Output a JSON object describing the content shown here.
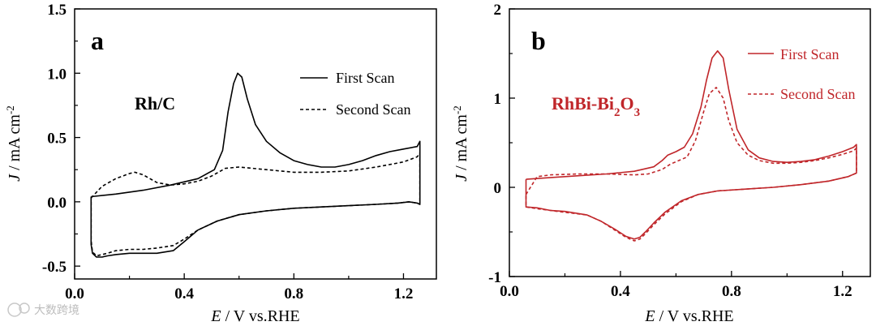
{
  "chart_data": [
    {
      "type": "line",
      "panel_label": "a",
      "annotation": "Rh/C",
      "xlabel": {
        "italic": "E",
        "rest": " / V vs.RHE"
      },
      "ylabel": {
        "italic": "J",
        "rest": " / mA cm",
        "sup": "-2"
      },
      "xlim": [
        0.0,
        1.32
      ],
      "ylim": [
        -0.6,
        1.5
      ],
      "xticks": [
        "0.0",
        "0.4",
        "0.8",
        "1.2"
      ],
      "xtick_values": [
        0.0,
        0.4,
        0.8,
        1.2
      ],
      "yticks": [
        "-0.5",
        "0.0",
        "0.5",
        "1.0",
        "1.5"
      ],
      "ytick_values": [
        -0.5,
        0.0,
        0.5,
        1.0,
        1.5
      ],
      "color": "#000000",
      "legend": {
        "placement": "top-right",
        "entries": [
          "First Scan",
          "Second Scan"
        ]
      },
      "series": [
        {
          "name": "First Scan",
          "style": "solid",
          "x": [
            0.06,
            0.15,
            0.25,
            0.35,
            0.45,
            0.51,
            0.54,
            0.56,
            0.58,
            0.595,
            0.61,
            0.63,
            0.66,
            0.7,
            0.75,
            0.8,
            0.85,
            0.9,
            0.95,
            1.0,
            1.05,
            1.1,
            1.15,
            1.2,
            1.25,
            1.26,
            1.26,
            1.25,
            1.22,
            1.18,
            1.1,
            1.0,
            0.9,
            0.8,
            0.7,
            0.6,
            0.52,
            0.45,
            0.4,
            0.36,
            0.3,
            0.25,
            0.2,
            0.15,
            0.12,
            0.1,
            0.08,
            0.065,
            0.06,
            0.06,
            0.06
          ],
          "y": [
            0.04,
            0.06,
            0.09,
            0.13,
            0.18,
            0.25,
            0.4,
            0.7,
            0.92,
            1.0,
            0.97,
            0.8,
            0.6,
            0.47,
            0.38,
            0.32,
            0.29,
            0.27,
            0.27,
            0.29,
            0.32,
            0.36,
            0.39,
            0.41,
            0.43,
            0.47,
            -0.02,
            -0.01,
            0.0,
            -0.01,
            -0.02,
            -0.03,
            -0.04,
            -0.05,
            -0.07,
            -0.1,
            -0.15,
            -0.22,
            -0.31,
            -0.38,
            -0.4,
            -0.4,
            -0.4,
            -0.41,
            -0.42,
            -0.43,
            -0.43,
            -0.4,
            -0.33,
            -0.1,
            0.04
          ]
        },
        {
          "name": "Second Scan",
          "style": "dashed",
          "x": [
            0.06,
            0.1,
            0.15,
            0.2,
            0.22,
            0.25,
            0.3,
            0.35,
            0.4,
            0.45,
            0.5,
            0.55,
            0.6,
            0.7,
            0.8,
            0.9,
            1.0,
            1.1,
            1.2,
            1.25,
            1.26,
            1.26,
            1.25,
            1.22,
            1.18,
            1.1,
            1.0,
            0.9,
            0.8,
            0.7,
            0.6,
            0.52,
            0.45,
            0.4,
            0.36,
            0.3,
            0.25,
            0.2,
            0.15,
            0.12,
            0.1,
            0.08,
            0.065,
            0.06,
            0.06
          ],
          "y": [
            0.03,
            0.12,
            0.18,
            0.22,
            0.23,
            0.21,
            0.15,
            0.13,
            0.14,
            0.16,
            0.2,
            0.26,
            0.27,
            0.25,
            0.23,
            0.23,
            0.24,
            0.27,
            0.31,
            0.35,
            0.38,
            -0.02,
            -0.01,
            0.0,
            -0.01,
            -0.02,
            -0.03,
            -0.04,
            -0.05,
            -0.07,
            -0.1,
            -0.15,
            -0.22,
            -0.29,
            -0.34,
            -0.36,
            -0.37,
            -0.37,
            -0.38,
            -0.4,
            -0.41,
            -0.42,
            -0.39,
            -0.3,
            0.03
          ]
        }
      ]
    },
    {
      "type": "line",
      "panel_label": "b",
      "annotation": {
        "main": "RhBi-Bi",
        "sub1": "2",
        "mid": "O",
        "sub2": "3"
      },
      "xlabel": {
        "italic": "E",
        "rest": " / V vs.RHE"
      },
      "ylabel": {
        "italic": "J",
        "rest": " / mA cm",
        "sup": "-2"
      },
      "xlim": [
        0.0,
        1.3
      ],
      "ylim": [
        -1.0,
        2.0
      ],
      "xticks": [
        "0.0",
        "0.4",
        "0.8",
        "1.2"
      ],
      "xtick_values": [
        0.0,
        0.4,
        0.8,
        1.2
      ],
      "yticks": [
        "-1",
        "0",
        "1",
        "2"
      ],
      "ytick_values": [
        -1,
        0,
        1,
        2
      ],
      "color": "#c0262a",
      "legend": {
        "placement": "top-right",
        "entries": [
          "First Scan",
          "Second Scan"
        ]
      },
      "series": [
        {
          "name": "First Scan",
          "style": "solid",
          "x": [
            0.06,
            0.15,
            0.25,
            0.35,
            0.45,
            0.52,
            0.55,
            0.57,
            0.6,
            0.63,
            0.66,
            0.69,
            0.71,
            0.73,
            0.75,
            0.77,
            0.79,
            0.82,
            0.86,
            0.9,
            0.95,
            1.0,
            1.05,
            1.1,
            1.15,
            1.2,
            1.24,
            1.25,
            1.25,
            1.22,
            1.15,
            1.05,
            0.95,
            0.85,
            0.75,
            0.68,
            0.62,
            0.56,
            0.52,
            0.49,
            0.47,
            0.45,
            0.42,
            0.38,
            0.33,
            0.28,
            0.2,
            0.15,
            0.1,
            0.06,
            0.06
          ],
          "y": [
            0.09,
            0.11,
            0.13,
            0.15,
            0.18,
            0.23,
            0.3,
            0.36,
            0.4,
            0.45,
            0.6,
            0.9,
            1.2,
            1.45,
            1.53,
            1.45,
            1.1,
            0.65,
            0.42,
            0.33,
            0.29,
            0.28,
            0.29,
            0.31,
            0.35,
            0.4,
            0.45,
            0.48,
            0.16,
            0.12,
            0.07,
            0.03,
            0.0,
            -0.02,
            -0.04,
            -0.08,
            -0.15,
            -0.28,
            -0.4,
            -0.5,
            -0.56,
            -0.58,
            -0.55,
            -0.47,
            -0.38,
            -0.31,
            -0.27,
            -0.26,
            -0.23,
            -0.22,
            0.09
          ]
        },
        {
          "name": "Second Scan",
          "style": "dashed",
          "x": [
            0.06,
            0.1,
            0.15,
            0.25,
            0.35,
            0.45,
            0.5,
            0.55,
            0.58,
            0.61,
            0.64,
            0.67,
            0.7,
            0.72,
            0.745,
            0.77,
            0.79,
            0.82,
            0.86,
            0.9,
            0.95,
            1.0,
            1.05,
            1.1,
            1.15,
            1.2,
            1.24,
            1.25,
            1.25,
            1.22,
            1.15,
            1.05,
            0.95,
            0.85,
            0.75,
            0.68,
            0.62,
            0.56,
            0.52,
            0.49,
            0.47,
            0.45,
            0.42,
            0.38,
            0.33,
            0.28,
            0.2,
            0.15,
            0.1,
            0.06,
            0.06
          ],
          "y": [
            -0.08,
            0.12,
            0.14,
            0.15,
            0.15,
            0.14,
            0.15,
            0.2,
            0.26,
            0.3,
            0.34,
            0.52,
            0.85,
            1.05,
            1.12,
            1.0,
            0.75,
            0.5,
            0.36,
            0.3,
            0.27,
            0.27,
            0.28,
            0.3,
            0.33,
            0.37,
            0.41,
            0.44,
            0.16,
            0.12,
            0.07,
            0.03,
            0.0,
            -0.02,
            -0.04,
            -0.08,
            -0.16,
            -0.3,
            -0.42,
            -0.52,
            -0.58,
            -0.6,
            -0.56,
            -0.48,
            -0.38,
            -0.31,
            -0.28,
            -0.26,
            -0.24,
            -0.22,
            -0.08
          ]
        }
      ]
    }
  ],
  "watermark": "大数跨境"
}
